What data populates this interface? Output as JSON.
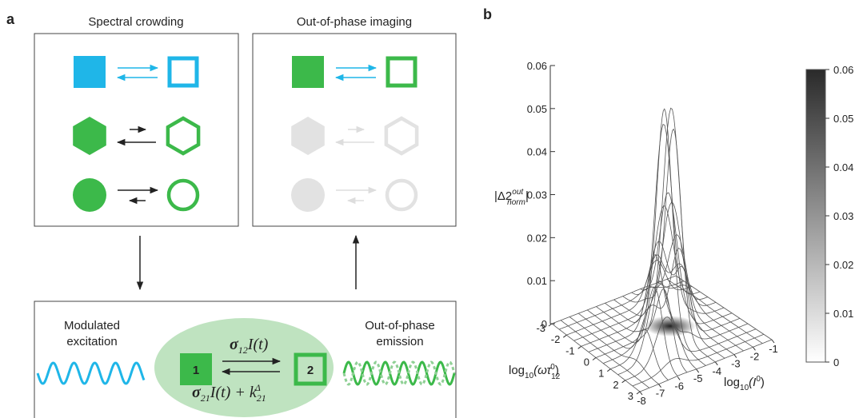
{
  "panel_labels": [
    "a",
    "b"
  ],
  "panel_a": {
    "left_title": "Spectral crowding",
    "right_title": "Out-of-phase imaging",
    "excitation_label": [
      "Modulated",
      "excitation"
    ],
    "emission_label": [
      "Out-of-phase",
      "emission"
    ],
    "state_1": "1",
    "state_2": "2",
    "forward_rate": {
      "sigma": "σ",
      "sub": "12",
      "rest": "I(t)"
    },
    "backward_rate": {
      "sigma": "σ",
      "sub": "21",
      "rest": "I(t) + k",
      "sub2": "21",
      "sup2": "Δ"
    }
  },
  "panel_b": {
    "z_label": {
      "main": "|Δ2",
      "sup": "out",
      "sub": "norm",
      "end": "|"
    },
    "zticks": [
      0,
      0.01,
      0.02,
      0.03,
      0.04,
      0.05,
      0.06
    ],
    "colorbar_ticks": [
      0,
      0.01,
      0.02,
      0.03,
      0.04,
      0.05,
      0.06
    ],
    "x_label": {
      "main": "log",
      "sub": "10",
      "rest": "(ωτ",
      "sub2": "12",
      "sup2": "0",
      "end": ")"
    },
    "xticks": [
      -3,
      -2,
      -1,
      0,
      1,
      2,
      3
    ],
    "y_label": {
      "main": "log",
      "sub": "10",
      "rest": "(I",
      "sup": "0",
      "end": ")"
    },
    "yticks": [
      -8,
      -7,
      -6,
      -5,
      -4,
      -3,
      -2,
      -1
    ]
  }
}
